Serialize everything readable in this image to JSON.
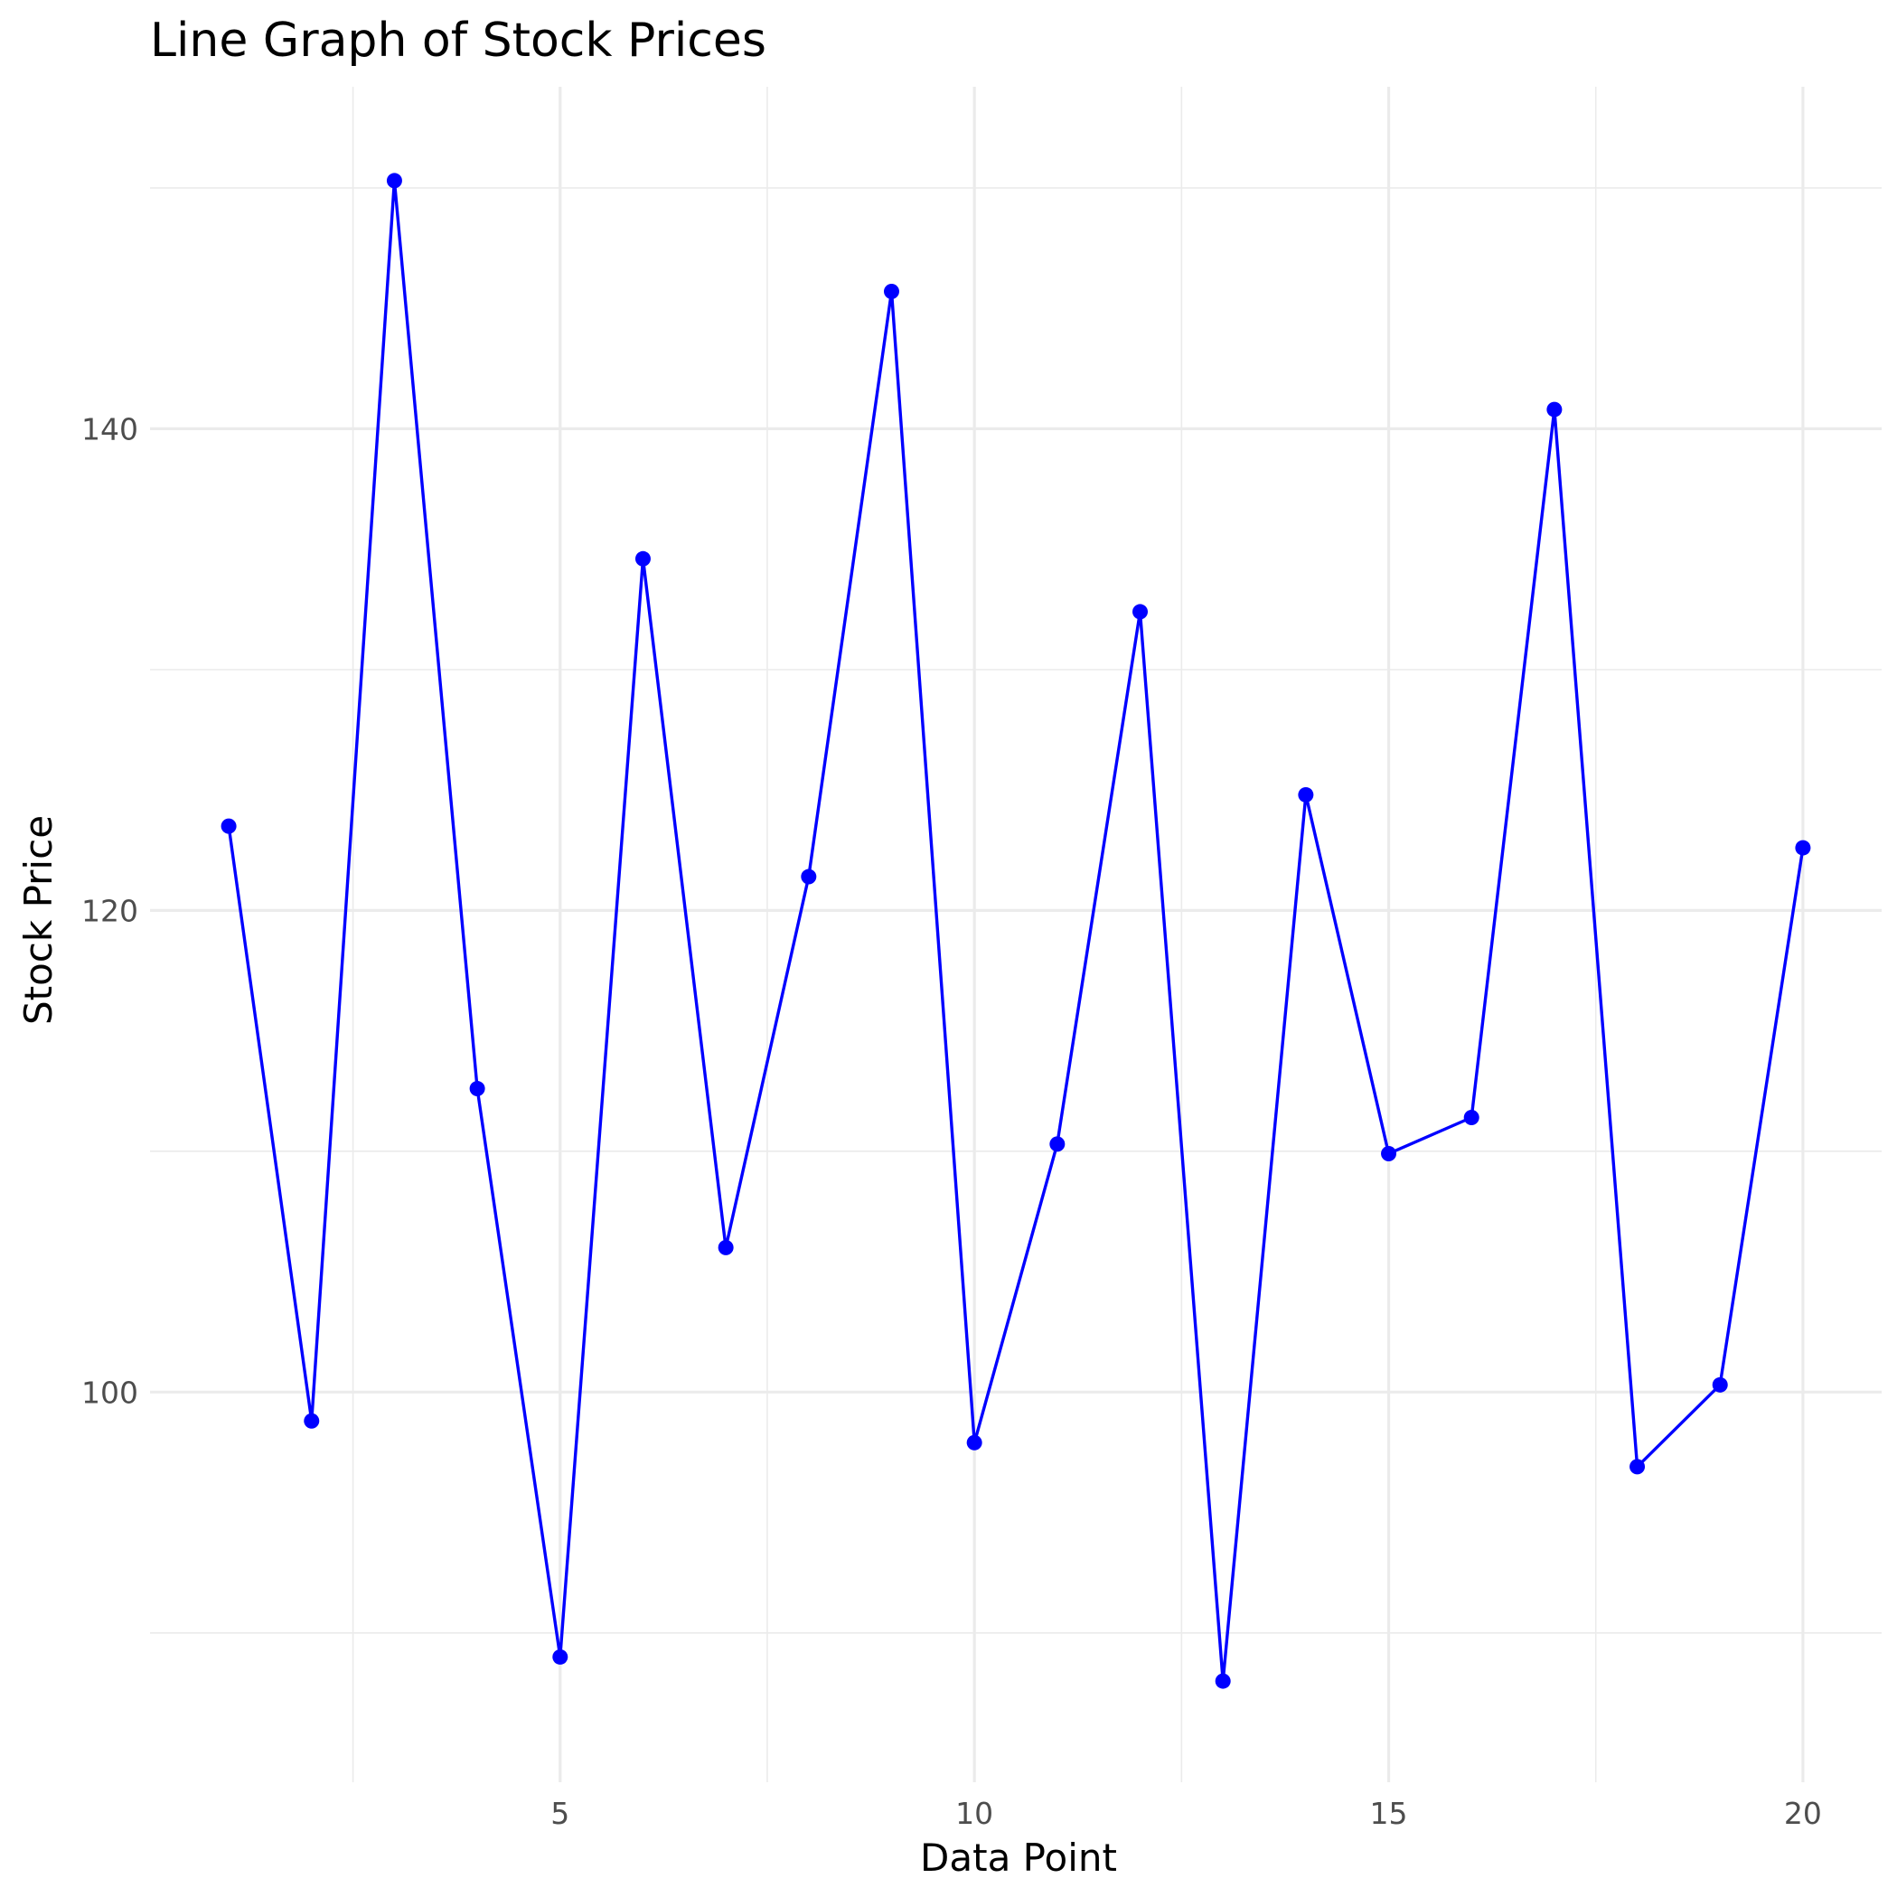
{
  "chart_data": {
    "type": "line",
    "title": "Line Graph of Stock Prices",
    "xlabel": "Data Point",
    "ylabel": "Stock Price",
    "x": [
      1,
      2,
      3,
      4,
      5,
      6,
      7,
      8,
      9,
      10,
      11,
      12,
      13,
      14,
      15,
      16,
      17,
      18,
      19,
      20
    ],
    "series": [
      {
        "values": [
          123.5,
          98.8,
          150.3,
          112.6,
          89.0,
          134.6,
          106.0,
          121.4,
          145.7,
          97.9,
          110.3,
          132.4,
          88.0,
          124.8,
          109.9,
          111.4,
          140.8,
          96.9,
          100.3,
          122.6
        ],
        "color": "#0000ff"
      }
    ],
    "xlim": [
      0.05,
      20.95
    ],
    "ylim": [
      83.8,
      154.2
    ],
    "x_ticks": [
      5,
      10,
      15,
      20
    ],
    "x_tick_labels": [
      "5",
      "10",
      "15",
      "20"
    ],
    "y_ticks": [
      100,
      120,
      140
    ],
    "y_tick_labels": [
      "100",
      "120",
      "140"
    ],
    "grid": true,
    "legend": "none"
  }
}
